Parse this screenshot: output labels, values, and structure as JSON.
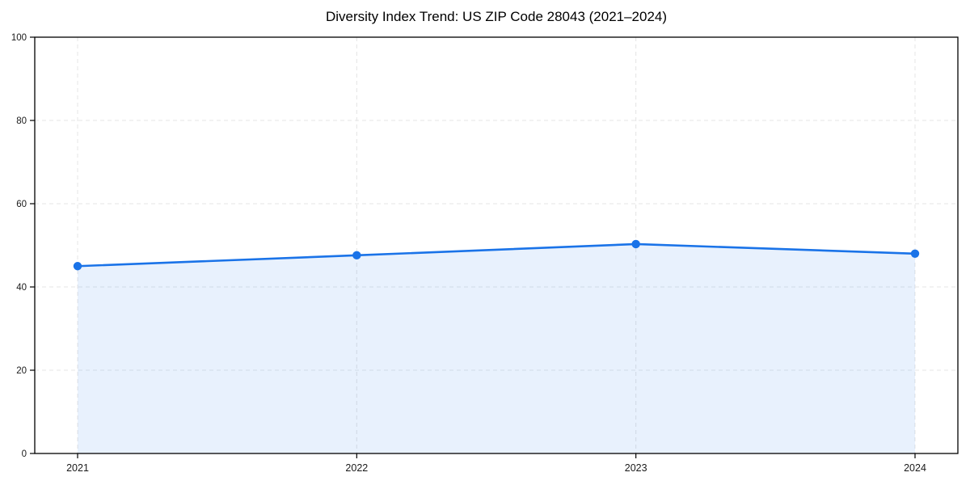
{
  "chart_data": {
    "type": "line",
    "title": "Diversity Index Trend: US ZIP Code 28043 (2021–2024)",
    "categories": [
      "2021",
      "2022",
      "2023",
      "2024"
    ],
    "series": [
      {
        "name": "Diversity Index",
        "values": [
          45.0,
          47.6,
          50.3,
          48.0
        ]
      }
    ],
    "xlabel": "",
    "ylabel": "",
    "ylim": [
      0,
      100
    ],
    "yticks": [
      0,
      20,
      40,
      60,
      80,
      100
    ],
    "grid": true,
    "grid_style": "dashed",
    "legend_position": "none",
    "area_fill": true,
    "marker": "circle",
    "colors": {
      "line": "#1a73e8",
      "marker": "#1a73e8",
      "area_fill": "rgba(26,115,232,0.10)",
      "grid": "#e6e6e6",
      "spine": "#000000",
      "tick_label": "#1a1a1a",
      "title": "#000000",
      "background": "#ffffff"
    }
  }
}
